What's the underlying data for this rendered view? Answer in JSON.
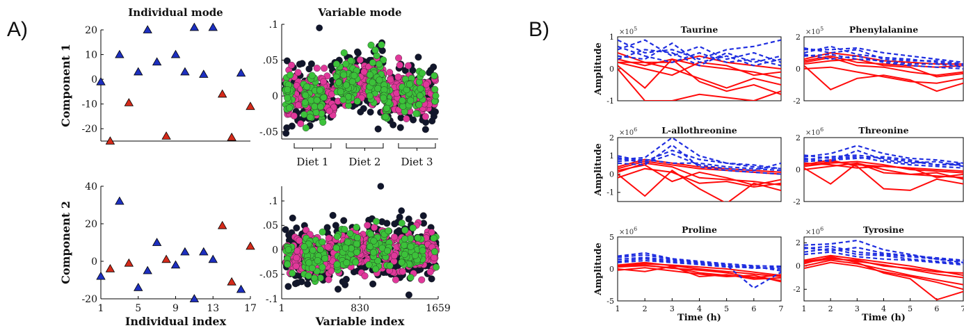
{
  "panel_labels": {
    "a": "A)",
    "b": "B)"
  },
  "colors": {
    "blue": "#1d2fbf",
    "red": "#d42a1a",
    "black": "#11162b",
    "magenta": "#e0389a",
    "green": "#3cc23a",
    "line_red": "#ff0a0a",
    "line_blue": "#1f2ee0"
  },
  "diet_labels": [
    "Diet 1",
    "Diet 2",
    "Diet 3"
  ],
  "chart_data": [
    {
      "id": "a1",
      "type": "scatter",
      "title": "Individual mode",
      "xlabel": "",
      "ylabel": "Component 1",
      "xlim": [
        1,
        17
      ],
      "ylim": [
        -25,
        20
      ],
      "xticks": [],
      "yticks": [
        20,
        10,
        0,
        -10,
        -20
      ],
      "series": [
        {
          "color": "blue",
          "points": [
            [
              1,
              -1
            ],
            [
              3,
              10
            ],
            [
              5,
              3
            ],
            [
              6,
              20
            ],
            [
              7,
              7
            ],
            [
              9,
              10
            ],
            [
              10,
              3
            ],
            [
              11,
              21
            ],
            [
              12,
              2
            ],
            [
              13,
              21
            ],
            [
              16,
              2.5
            ]
          ]
        },
        {
          "color": "red",
          "points": [
            [
              2,
              -25
            ],
            [
              4,
              -9.5
            ],
            [
              8,
              -23
            ],
            [
              14,
              -6
            ],
            [
              15,
              -23.5
            ],
            [
              17,
              -11
            ]
          ]
        }
      ]
    },
    {
      "id": "a2",
      "type": "scatter",
      "title": "",
      "xlabel": "Individual index",
      "ylabel": "Component 2",
      "xlim": [
        1,
        17
      ],
      "ylim": [
        -20,
        40
      ],
      "xticks": [
        1,
        5,
        9,
        13,
        17
      ],
      "yticks": [
        40,
        20,
        0,
        -20
      ],
      "series": [
        {
          "color": "blue",
          "points": [
            [
              1,
              -8
            ],
            [
              3,
              32
            ],
            [
              5,
              -14
            ],
            [
              6,
              -5
            ],
            [
              7,
              10
            ],
            [
              9,
              -2
            ],
            [
              10,
              5
            ],
            [
              11,
              -20
            ],
            [
              12,
              5
            ],
            [
              13,
              1
            ],
            [
              16,
              -15
            ]
          ]
        },
        {
          "color": "red",
          "points": [
            [
              2,
              -4
            ],
            [
              4,
              -1
            ],
            [
              8,
              1
            ],
            [
              14,
              19
            ],
            [
              15,
              -11
            ],
            [
              17,
              8
            ]
          ]
        }
      ]
    },
    {
      "id": "a3",
      "type": "scatter",
      "title": "Variable mode",
      "xlabel": "",
      "ylabel": "",
      "xlim": [
        1,
        1659
      ],
      "ylim": [
        -0.06,
        0.1
      ],
      "xticks": [],
      "yticks": [
        0.1,
        0.05,
        0,
        -0.05
      ],
      "series_colors": [
        "black",
        "magenta",
        "green"
      ],
      "diet_bounds": [
        1,
        553,
        1106,
        1659
      ],
      "outliers": [
        [
          400,
          0.095
        ]
      ]
    },
    {
      "id": "a4",
      "type": "scatter",
      "title": "",
      "xlabel": "Variable index",
      "ylabel": "",
      "xlim": [
        1,
        1659
      ],
      "ylim": [
        -0.1,
        0.13
      ],
      "xticks": [
        1,
        830,
        1659
      ],
      "yticks": [
        0.1,
        0.05,
        0,
        -0.05,
        -0.1
      ],
      "series_colors": [
        "black",
        "magenta",
        "green"
      ],
      "outliers": [
        [
          1050,
          0.13
        ],
        [
          1270,
          0.08
        ]
      ]
    },
    {
      "id": "b1",
      "type": "line",
      "title": "Taurine",
      "xlabel": "",
      "ylabel": "Amplitude",
      "exponent": "5",
      "x": [
        1,
        2,
        3,
        4,
        5,
        6,
        7
      ],
      "ylim": [
        -1,
        1
      ],
      "yticks": [
        1,
        0,
        -1
      ],
      "xticks": [],
      "red": [
        [
          0.5,
          0.2,
          0.2,
          0.4,
          0.2,
          0.1,
          0.0
        ],
        [
          0.3,
          0.1,
          0.3,
          0.1,
          0.0,
          -0.1,
          -0.3
        ],
        [
          0.2,
          0.2,
          0.0,
          -0.3,
          -0.6,
          -0.3,
          -0.5
        ],
        [
          0.1,
          -0.6,
          0.3,
          -0.4,
          -0.7,
          -0.5,
          -0.8
        ],
        [
          0.0,
          -1.0,
          -1.0,
          -0.8,
          -0.9,
          -1.0,
          -0.7
        ],
        [
          0.2,
          0.0,
          -0.2,
          0.2,
          0.1,
          -0.2,
          -0.1
        ]
      ],
      "blue": [
        [
          0.9,
          0.5,
          0.6,
          0.3,
          0.6,
          0.7,
          0.9
        ],
        [
          0.6,
          0.9,
          0.4,
          0.7,
          0.3,
          0.5,
          0.2
        ],
        [
          0.4,
          0.3,
          0.8,
          0.2,
          0.4,
          0.1,
          0.3
        ],
        [
          0.7,
          0.4,
          0.2,
          0.5,
          0.2,
          0.3,
          0.1
        ],
        [
          0.3,
          0.6,
          0.5,
          0.1,
          0.5,
          0.2,
          0.4
        ]
      ]
    },
    {
      "id": "b2",
      "type": "line",
      "title": "Phenylalanine",
      "xlabel": "",
      "ylabel": "",
      "exponent": "5",
      "x": [
        1,
        2,
        3,
        4,
        5,
        6,
        7
      ],
      "ylim": [
        -2,
        2
      ],
      "yticks": [
        2,
        0,
        -2
      ],
      "xticks": [],
      "red": [
        [
          0.6,
          1.0,
          0.8,
          0.5,
          0.4,
          0.3,
          0.3
        ],
        [
          0.4,
          0.7,
          0.2,
          0.1,
          -0.2,
          -0.4,
          -0.2
        ],
        [
          0.2,
          -1.3,
          -0.6,
          -0.4,
          -0.7,
          -1.4,
          -0.9
        ],
        [
          0.3,
          0.5,
          0.6,
          0.2,
          0.1,
          -0.5,
          -0.3
        ],
        [
          0.0,
          0.1,
          -0.2,
          -0.5,
          -0.8,
          -0.9,
          -0.6
        ],
        [
          0.5,
          0.8,
          0.4,
          0.3,
          0.2,
          0.1,
          0.2
        ]
      ],
      "blue": [
        [
          1.2,
          1.2,
          1.3,
          1.0,
          0.8,
          0.6,
          0.4
        ],
        [
          1.0,
          1.4,
          0.9,
          0.7,
          0.6,
          0.4,
          0.2
        ],
        [
          0.8,
          0.9,
          0.6,
          0.5,
          0.3,
          0.3,
          0.1
        ],
        [
          1.3,
          1.0,
          1.2,
          0.6,
          0.5,
          0.5,
          0.3
        ],
        [
          0.9,
          0.6,
          0.8,
          0.4,
          0.2,
          0.1,
          0.0
        ]
      ]
    },
    {
      "id": "b3",
      "type": "line",
      "title": "L-allothreonine",
      "xlabel": "",
      "ylabel": "Amplitude",
      "exponent": "6",
      "x": [
        1,
        2,
        3,
        4,
        5,
        6,
        7
      ],
      "ylim": [
        -1.5,
        2
      ],
      "yticks": [
        2,
        1,
        0,
        -1
      ],
      "xticks": [],
      "red": [
        [
          0.3,
          0.7,
          0.5,
          0.3,
          0.2,
          0.1,
          0.0
        ],
        [
          0.1,
          0.6,
          0.4,
          -0.2,
          -0.3,
          -0.4,
          -0.6
        ],
        [
          0.0,
          -1.2,
          0.2,
          -0.8,
          -1.6,
          -0.5,
          -0.9
        ],
        [
          0.2,
          0.5,
          -0.4,
          0.1,
          -0.2,
          -0.6,
          -0.3
        ],
        [
          -0.2,
          0.3,
          0.1,
          -0.5,
          -0.4,
          -0.7,
          -0.5
        ],
        [
          0.4,
          0.8,
          0.6,
          0.4,
          0.3,
          0.2,
          0.1
        ]
      ],
      "blue": [
        [
          0.8,
          0.9,
          2.0,
          1.0,
          0.6,
          0.4,
          0.3
        ],
        [
          1.0,
          0.7,
          1.3,
          0.8,
          0.6,
          0.5,
          0.3
        ],
        [
          0.6,
          0.5,
          1.6,
          0.4,
          0.2,
          0.1,
          0.0
        ],
        [
          0.7,
          0.8,
          0.6,
          0.6,
          0.4,
          0.3,
          0.2
        ],
        [
          0.9,
          0.6,
          1.1,
          0.5,
          0.3,
          0.2,
          0.6
        ]
      ]
    },
    {
      "id": "b4",
      "type": "line",
      "title": "Threonine",
      "xlabel": "",
      "ylabel": "",
      "exponent": "6",
      "x": [
        1,
        2,
        3,
        4,
        5,
        6,
        7
      ],
      "ylim": [
        -2,
        2
      ],
      "yticks": [
        2,
        0,
        -2
      ],
      "xticks": [],
      "red": [
        [
          0.2,
          0.5,
          0.3,
          0.2,
          0.1,
          0.0,
          -0.1
        ],
        [
          0.1,
          -0.9,
          0.4,
          -0.2,
          -0.3,
          -0.4,
          -0.5
        ],
        [
          0.3,
          0.6,
          0.2,
          -1.2,
          -1.3,
          -0.6,
          -0.9
        ],
        [
          0.0,
          0.2,
          0.4,
          0.0,
          -0.3,
          -0.2,
          -0.6
        ],
        [
          0.4,
          0.3,
          0.1,
          0.2,
          0.1,
          -0.5,
          -0.3
        ],
        [
          0.2,
          0.4,
          0.5,
          0.3,
          0.0,
          -0.1,
          -0.2
        ]
      ],
      "blue": [
        [
          0.8,
          1.0,
          1.5,
          1.0,
          0.7,
          0.6,
          0.4
        ],
        [
          0.6,
          0.8,
          0.9,
          0.7,
          0.5,
          0.3,
          0.3
        ],
        [
          0.7,
          0.5,
          1.2,
          0.6,
          0.4,
          0.5,
          0.2
        ],
        [
          0.5,
          0.6,
          0.7,
          0.8,
          0.6,
          0.3,
          0.4
        ],
        [
          0.9,
          0.7,
          0.8,
          0.5,
          0.3,
          0.2,
          0.1
        ]
      ]
    },
    {
      "id": "b5",
      "type": "line",
      "title": "Proline",
      "xlabel": "Time (h)",
      "ylabel": "Amplitude",
      "exponent": "6",
      "x": [
        1,
        2,
        3,
        4,
        5,
        6,
        7
      ],
      "ylim": [
        -5,
        5
      ],
      "yticks": [
        5,
        0,
        -5
      ],
      "xticks": [
        1,
        2,
        3,
        4,
        5,
        6,
        7
      ],
      "red": [
        [
          0.5,
          0.8,
          0.6,
          0.3,
          0.0,
          -0.5,
          -1.0
        ],
        [
          0.3,
          0.5,
          0.2,
          -0.6,
          -1.0,
          -1.3,
          -1.8
        ],
        [
          0.0,
          -0.4,
          0.4,
          -1.2,
          -0.9,
          -1.6,
          -1.4
        ],
        [
          0.6,
          1.0,
          0.5,
          0.0,
          -0.4,
          -0.8,
          -1.2
        ],
        [
          -0.2,
          0.2,
          -0.3,
          -0.8,
          -1.2,
          -1.0,
          -2.0
        ],
        [
          0.4,
          0.6,
          0.1,
          -0.2,
          -0.6,
          -1.4,
          -0.9
        ]
      ],
      "blue": [
        [
          2.0,
          2.5,
          1.6,
          1.2,
          0.8,
          0.5,
          0.4
        ],
        [
          1.5,
          1.8,
          1.3,
          1.0,
          0.6,
          -3.0,
          -0.5
        ],
        [
          1.0,
          1.3,
          1.0,
          0.7,
          0.3,
          0.2,
          0.0
        ],
        [
          1.2,
          1.6,
          1.1,
          0.8,
          0.5,
          0.4,
          -0.3
        ],
        [
          1.8,
          2.2,
          1.5,
          1.0,
          0.6,
          0.1,
          0.3
        ]
      ]
    },
    {
      "id": "b6",
      "type": "line",
      "title": "Tyrosine",
      "xlabel": "Time (h)",
      "ylabel": "",
      "exponent": "6",
      "x": [
        1,
        2,
        3,
        4,
        5,
        6,
        7
      ],
      "ylim": [
        -3,
        2.5
      ],
      "yticks": [
        2,
        0,
        -2
      ],
      "xticks": [
        1,
        2,
        3,
        4,
        5,
        6,
        7
      ],
      "red": [
        [
          0.5,
          0.9,
          0.6,
          0.3,
          0.0,
          -0.4,
          -0.8
        ],
        [
          0.2,
          0.8,
          0.3,
          -0.6,
          -1.1,
          -2.9,
          -2.2
        ],
        [
          0.0,
          0.5,
          0.2,
          -0.3,
          -0.8,
          -1.2,
          -1.6
        ],
        [
          0.4,
          0.7,
          0.4,
          0.1,
          -0.3,
          -0.7,
          -1.0
        ],
        [
          -0.2,
          0.3,
          0.0,
          -0.5,
          -0.9,
          -1.4,
          -2.0
        ],
        [
          0.3,
          0.6,
          0.5,
          0.0,
          -0.2,
          -0.5,
          -0.6
        ]
      ],
      "blue": [
        [
          1.8,
          1.9,
          2.2,
          1.4,
          1.0,
          0.6,
          0.3
        ],
        [
          1.5,
          1.7,
          1.2,
          1.0,
          0.8,
          0.6,
          0.4
        ],
        [
          1.2,
          1.5,
          1.0,
          0.9,
          0.6,
          0.4,
          0.2
        ],
        [
          1.6,
          1.3,
          1.6,
          1.1,
          0.9,
          0.7,
          0.5
        ],
        [
          1.0,
          1.2,
          0.8,
          0.6,
          0.5,
          0.3,
          0.1
        ]
      ]
    }
  ]
}
